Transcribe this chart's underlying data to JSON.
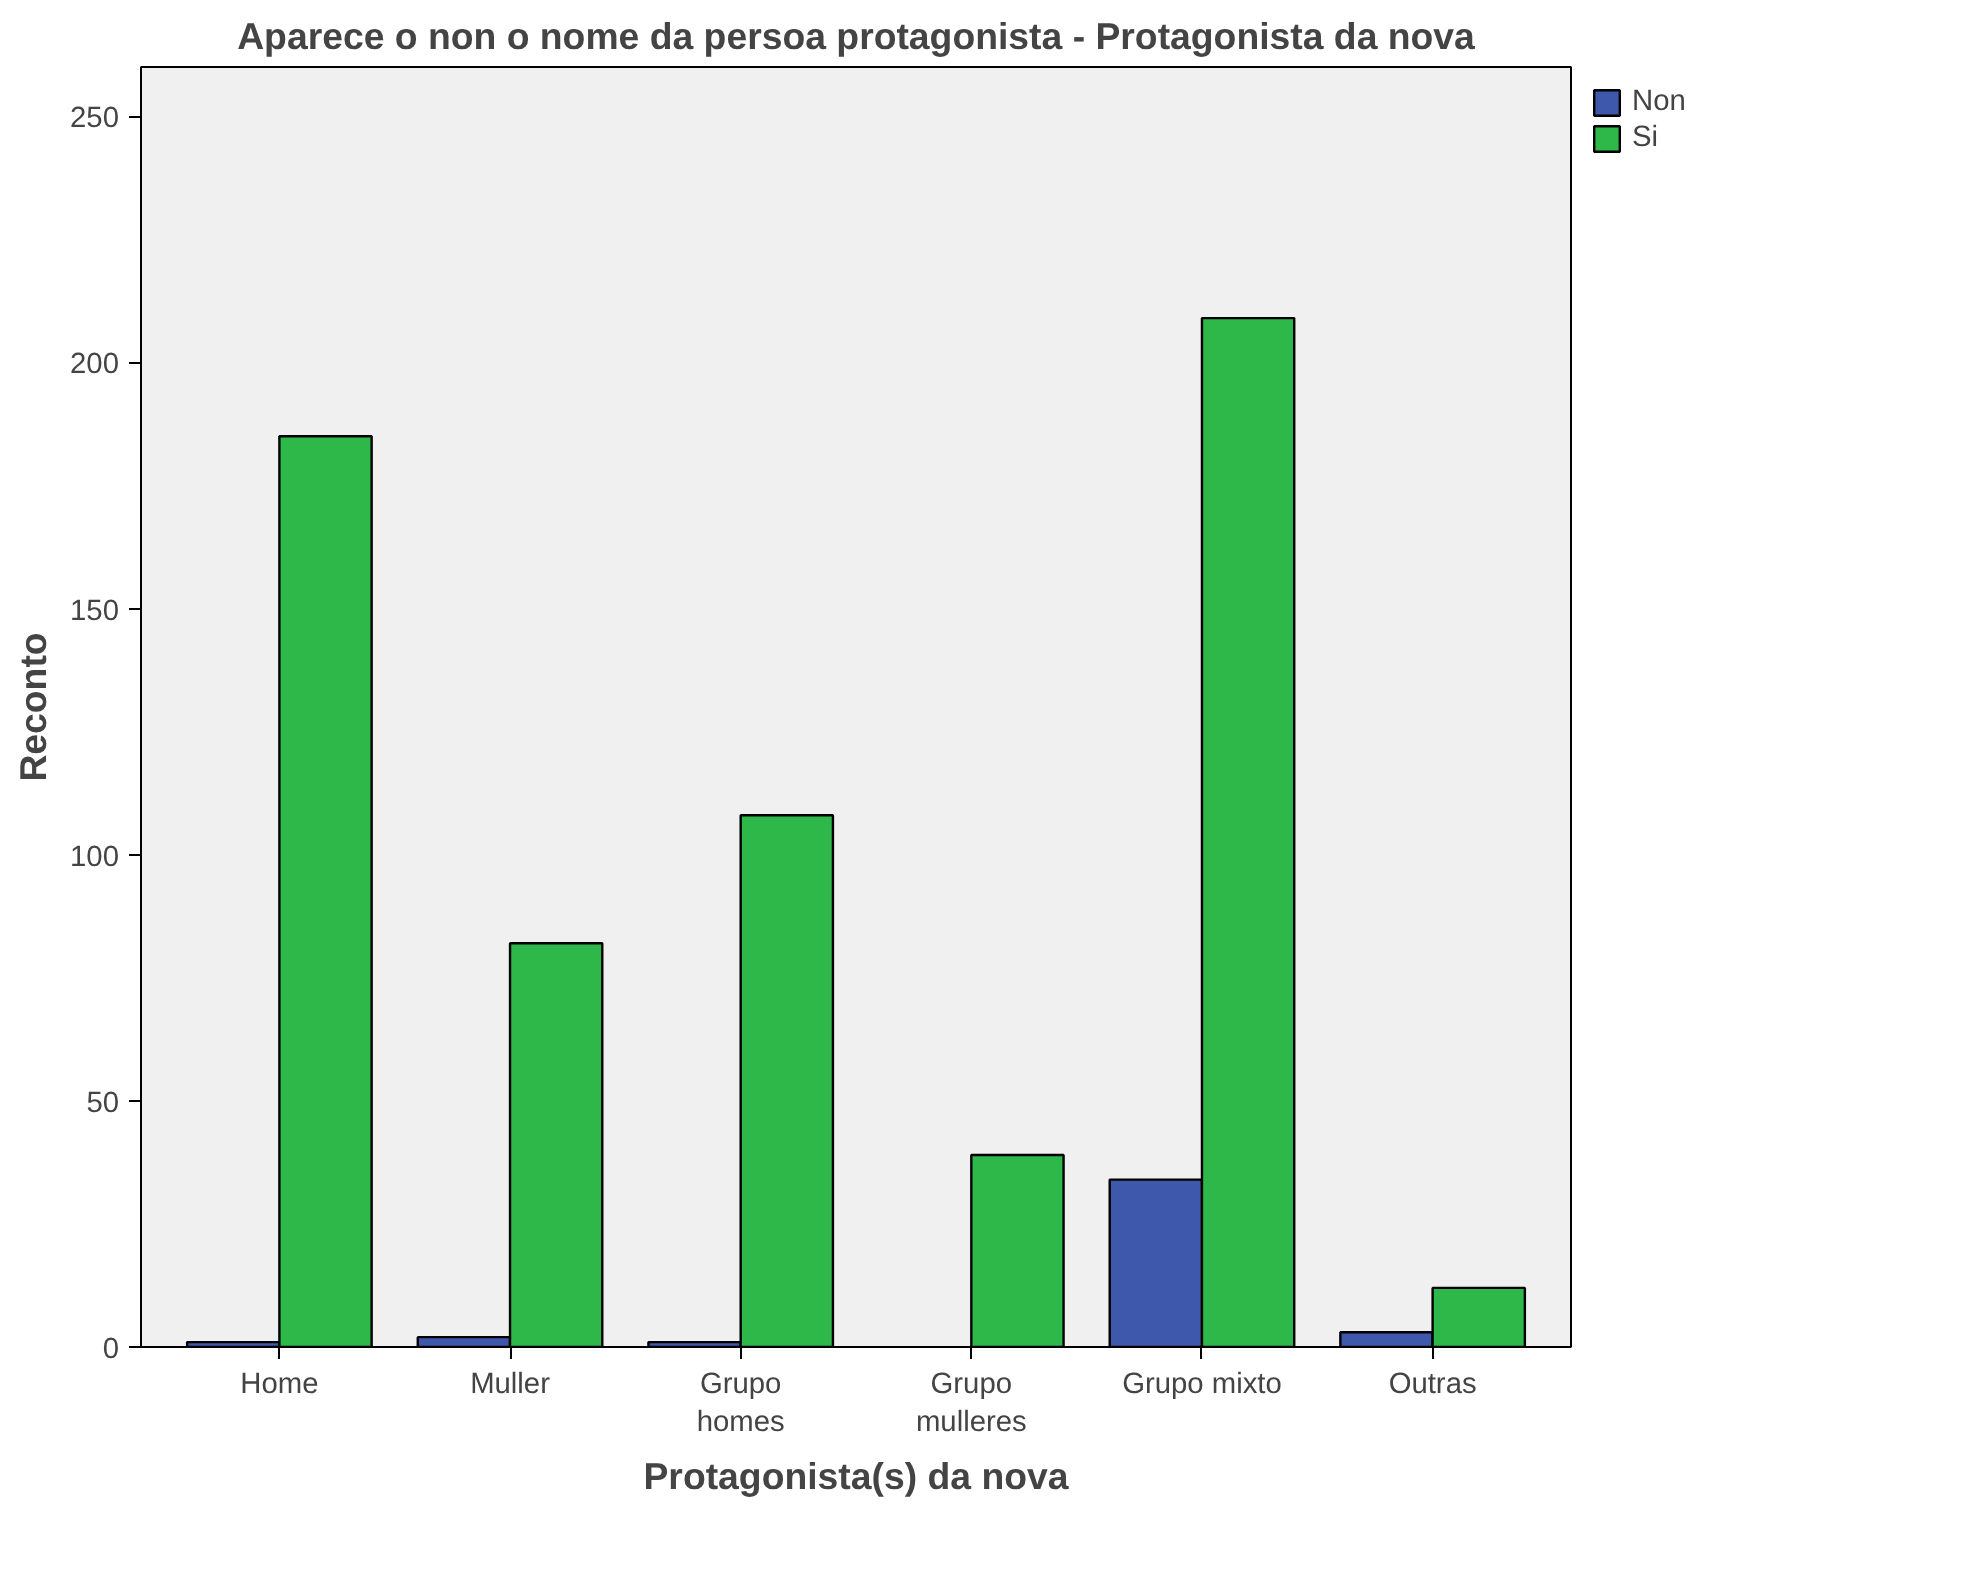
{
  "chart_data": {
    "type": "bar",
    "title": "Aparece o non o nome da persoa protagonista - Protagonista da nova",
    "xlabel": "Protagonista(s) da nova",
    "ylabel": "Reconto",
    "categories": [
      "Home",
      "Muller",
      "Grupo\nhomes",
      "Grupo\nmulleres",
      "Grupo mixto",
      "Outras"
    ],
    "series": [
      {
        "name": "Non",
        "color": "#3e58ac",
        "values": [
          1,
          2,
          1,
          null,
          34,
          3
        ]
      },
      {
        "name": "Si",
        "color": "#2eb84a",
        "values": [
          185,
          82,
          108,
          39,
          209,
          12
        ]
      }
    ],
    "ylim": [
      0,
      260
    ],
    "yticks": [
      0,
      50,
      100,
      150,
      200,
      250
    ],
    "grid": false,
    "legend": "top right"
  }
}
